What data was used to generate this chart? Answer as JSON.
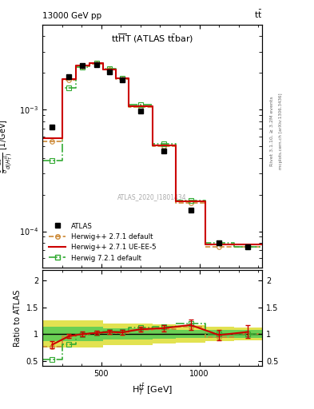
{
  "top_left_text": "13000 GeV pp",
  "top_right_text": "t$\\bar{t}$",
  "watermark": "ATLAS_2020_I1801434",
  "xlabel": "H$_T^{t\\bar{t}}$ [GeV]",
  "ylabel_ratio": "Ratio to ATLAS",
  "x_edges": [
    200,
    300,
    370,
    440,
    510,
    575,
    640,
    760,
    880,
    1030,
    1175,
    1320
  ],
  "y_atlas": [
    0.00072,
    0.00185,
    0.0023,
    0.00235,
    0.00205,
    0.00175,
    0.00098,
    0.00046,
    0.00015,
    8e-05,
    7.5e-05
  ],
  "y_hw271def": [
    0.00055,
    0.00175,
    0.00228,
    0.00238,
    0.00212,
    0.00178,
    0.00105,
    0.0005,
    0.00017,
    7.5e-05,
    7.5e-05
  ],
  "y_hw271ue": [
    0.00058,
    0.00178,
    0.0023,
    0.0024,
    0.00214,
    0.0018,
    0.00107,
    0.00051,
    0.000175,
    7.8e-05,
    7.8e-05
  ],
  "y_hw721def": [
    0.00038,
    0.0015,
    0.00225,
    0.0024,
    0.00216,
    0.00182,
    0.0011,
    0.00052,
    0.00018,
    8e-05,
    7.5e-05
  ],
  "x_centers": [
    250,
    335,
    405,
    475,
    542,
    607,
    700,
    820,
    955,
    1100,
    1248
  ],
  "ratio_hw271def": [
    0.76,
    0.95,
    0.99,
    1.01,
    1.03,
    1.02,
    1.07,
    1.09,
    1.13,
    0.94,
    1.0
  ],
  "ratio_hw271ue": [
    0.8,
    0.96,
    1.0,
    1.02,
    1.04,
    1.03,
    1.09,
    1.11,
    1.17,
    0.98,
    1.04
  ],
  "ratio_hw721def": [
    0.53,
    0.81,
    0.98,
    1.02,
    1.05,
    1.04,
    1.12,
    1.13,
    1.2,
    1.0,
    1.0
  ],
  "ratio_err_hw271ue": [
    0.06,
    0.04,
    0.04,
    0.04,
    0.04,
    0.04,
    0.05,
    0.06,
    0.1,
    0.1,
    0.12
  ],
  "band_yellow_low": [
    0.75,
    0.75,
    0.75,
    0.75,
    0.8,
    0.8,
    0.8,
    0.82,
    0.84,
    0.86,
    0.88
  ],
  "band_yellow_high": [
    1.25,
    1.25,
    1.25,
    1.25,
    1.2,
    1.2,
    1.2,
    1.18,
    1.16,
    1.14,
    1.12
  ],
  "band_green_low": [
    0.87,
    0.87,
    0.87,
    0.87,
    0.9,
    0.9,
    0.9,
    0.91,
    0.92,
    0.92,
    0.93
  ],
  "band_green_high": [
    1.13,
    1.13,
    1.13,
    1.13,
    1.1,
    1.1,
    1.1,
    1.09,
    1.08,
    1.08,
    1.07
  ],
  "color_atlas": "#000000",
  "color_hw271def": "#cc8833",
  "color_hw271ue": "#cc0000",
  "color_hw721def": "#33aa33",
  "color_green_band": "#55cc55",
  "color_yellow_band": "#dddd33",
  "xlim": [
    200,
    1320
  ],
  "ylim_main": [
    5e-05,
    0.005
  ],
  "ylim_ratio": [
    0.4,
    2.2
  ],
  "yticks_ratio": [
    0.5,
    1.0,
    1.5,
    2.0
  ],
  "xticks": [
    500,
    1000
  ],
  "legend_entries": [
    "ATLAS",
    "Herwig++ 2.7.1 default",
    "Herwig++ 2.7.1 UE-EE-5",
    "Herwig 7.2.1 default"
  ]
}
